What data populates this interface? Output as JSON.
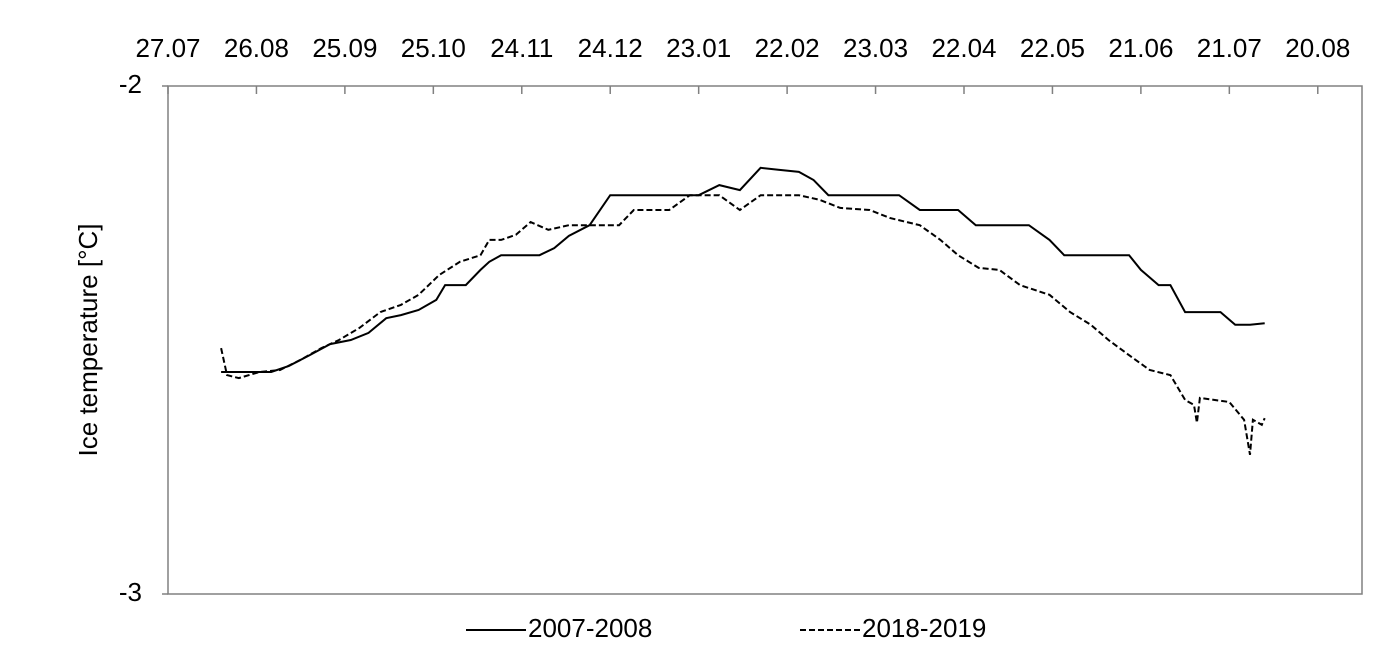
{
  "chart_data": {
    "type": "line",
    "y_label": "Ice temperature [°C]",
    "xlim": [
      0,
      405
    ],
    "xticks": [
      {
        "value": 0,
        "label": "27.07"
      },
      {
        "value": 30,
        "label": "26.08"
      },
      {
        "value": 60,
        "label": "25.09"
      },
      {
        "value": 90,
        "label": "25.10"
      },
      {
        "value": 120,
        "label": "24.11"
      },
      {
        "value": 150,
        "label": "24.12"
      },
      {
        "value": 180,
        "label": "23.01"
      },
      {
        "value": 210,
        "label": "22.02"
      },
      {
        "value": 240,
        "label": "23.03"
      },
      {
        "value": 270,
        "label": "22.04"
      },
      {
        "value": 300,
        "label": "22.05"
      },
      {
        "value": 330,
        "label": "21.06"
      },
      {
        "value": 360,
        "label": "21.07"
      },
      {
        "value": 390,
        "label": "20.08"
      }
    ],
    "xaxis_position": "top",
    "ylim": [
      -3,
      -2
    ],
    "yticks": [
      -3,
      -2
    ],
    "series": [
      {
        "name": "2007-2008",
        "color": "#000000",
        "dash": "solid",
        "x": [
          18,
          26,
          35,
          41,
          48,
          55,
          62,
          68,
          74,
          79,
          85,
          91,
          94,
          101,
          106,
          109,
          113,
          119,
          126,
          131,
          136,
          143,
          150,
          160,
          170,
          180,
          187,
          194,
          201,
          207,
          214,
          219,
          224,
          235,
          248,
          255,
          268,
          274,
          282,
          292,
          299,
          304,
          316,
          326,
          330,
          336,
          340,
          345,
          357,
          362,
          367,
          372
        ],
        "values": [
          -2.563,
          -2.563,
          -2.563,
          -2.551,
          -2.53,
          -2.508,
          -2.5,
          -2.486,
          -2.457,
          -2.451,
          -2.441,
          -2.421,
          -2.392,
          -2.392,
          -2.362,
          -2.346,
          -2.333,
          -2.333,
          -2.333,
          -2.319,
          -2.295,
          -2.274,
          -2.215,
          -2.215,
          -2.215,
          -2.215,
          -2.195,
          -2.205,
          -2.161,
          -2.165,
          -2.169,
          -2.185,
          -2.215,
          -2.215,
          -2.215,
          -2.244,
          -2.244,
          -2.274,
          -2.274,
          -2.274,
          -2.303,
          -2.333,
          -2.333,
          -2.333,
          -2.362,
          -2.392,
          -2.392,
          -2.445,
          -2.445,
          -2.47,
          -2.47,
          -2.467
        ]
      },
      {
        "name": "2018-2019",
        "color": "#000000",
        "dash": "dashed",
        "x": [
          18,
          20,
          24,
          31,
          38,
          45,
          52,
          58,
          65,
          72,
          79,
          85,
          92,
          99,
          106,
          109,
          113,
          118,
          123,
          129,
          136,
          146,
          153,
          158,
          170,
          177,
          187,
          194,
          201,
          214,
          221,
          228,
          238,
          245,
          255,
          262,
          268,
          275,
          282,
          289,
          299,
          306,
          313,
          319,
          326,
          333,
          340,
          345,
          348,
          349,
          350,
          360,
          365,
          367,
          368,
          371,
          372
        ],
        "values": [
          -2.516,
          -2.569,
          -2.575,
          -2.563,
          -2.559,
          -2.539,
          -2.516,
          -2.5,
          -2.476,
          -2.445,
          -2.431,
          -2.411,
          -2.372,
          -2.346,
          -2.333,
          -2.303,
          -2.303,
          -2.293,
          -2.268,
          -2.283,
          -2.274,
          -2.274,
          -2.274,
          -2.244,
          -2.244,
          -2.215,
          -2.215,
          -2.244,
          -2.215,
          -2.215,
          -2.224,
          -2.24,
          -2.244,
          -2.26,
          -2.274,
          -2.303,
          -2.333,
          -2.358,
          -2.362,
          -2.392,
          -2.411,
          -2.445,
          -2.47,
          -2.5,
          -2.53,
          -2.559,
          -2.569,
          -2.618,
          -2.628,
          -2.663,
          -2.614,
          -2.622,
          -2.657,
          -2.726,
          -2.657,
          -2.667,
          -2.654
        ]
      }
    ],
    "legend": "bottom"
  }
}
